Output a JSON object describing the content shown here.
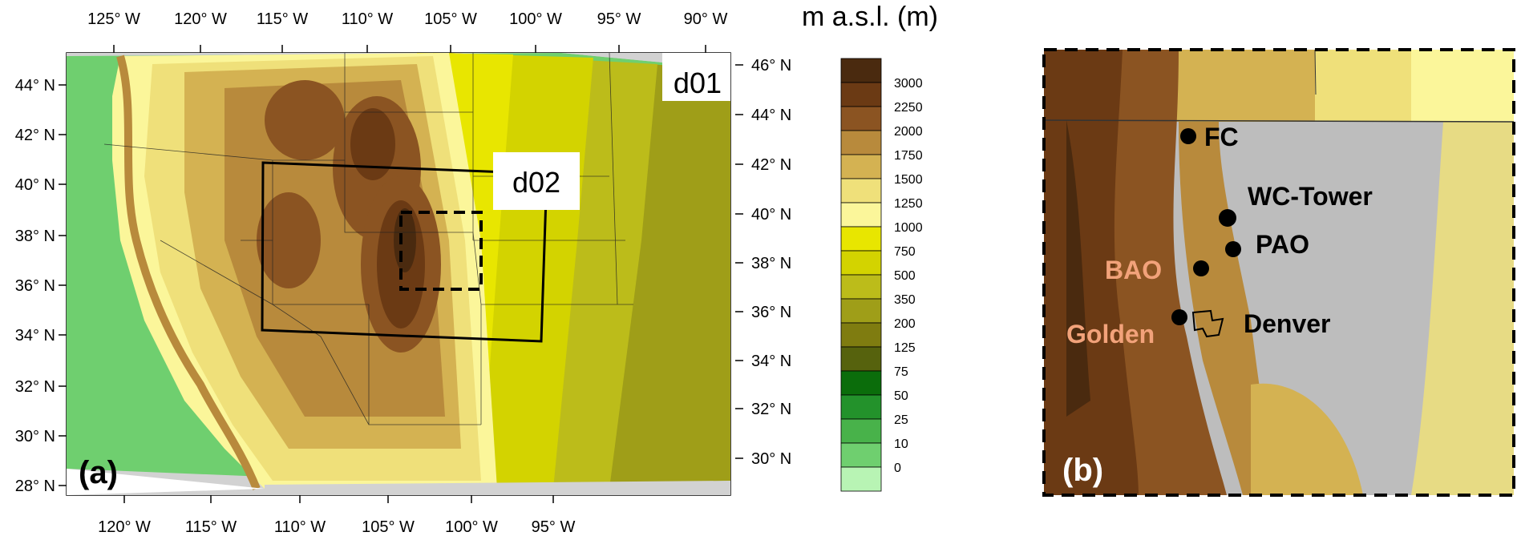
{
  "panel_a": {
    "label": "(a)",
    "bottom_lon_ticks": [
      "120° W",
      "115° W",
      "110° W",
      "105° W",
      "100° W",
      "95° W"
    ],
    "top_lon_ticks": [
      "125° W",
      "120° W",
      "115° W",
      "110° W",
      "105° W",
      "100° W",
      "95° W",
      "90° W"
    ],
    "left_lat_ticks": [
      "44° N",
      "42° N",
      "40° N",
      "38° N",
      "36° N",
      "34° N",
      "32° N",
      "30° N",
      "28° N"
    ],
    "right_lat_ticks": [
      "46° N",
      "44° N",
      "42° N",
      "40° N",
      "38° N",
      "36° N",
      "34° N",
      "32° N",
      "30° N"
    ],
    "domains": {
      "outer": "d01",
      "inner": "d02"
    }
  },
  "colorbar": {
    "title": "m a.s.l. (m)",
    "levels": [
      {
        "label": "3000",
        "color": "#4a2a0f"
      },
      {
        "label": "2250",
        "color": "#6b3a14"
      },
      {
        "label": "2000",
        "color": "#8b5422"
      },
      {
        "label": "1750",
        "color": "#b88a3c"
      },
      {
        "label": "1500",
        "color": "#d4b252"
      },
      {
        "label": "1250",
        "color": "#efe07a"
      },
      {
        "label": "1000",
        "color": "#fbf69a"
      },
      {
        "label": "750",
        "color": "#e8e600"
      },
      {
        "label": "500",
        "color": "#d3d300"
      },
      {
        "label": "350",
        "color": "#bcbc1a"
      },
      {
        "label": "200",
        "color": "#9f9e18"
      },
      {
        "label": "125",
        "color": "#7f7c10"
      },
      {
        "label": "75",
        "color": "#56620d"
      },
      {
        "label": "50",
        "color": "#0b6d0b"
      },
      {
        "label": "25",
        "color": "#23922b"
      },
      {
        "label": "10",
        "color": "#48b24a"
      },
      {
        "label": "0",
        "color": "#6fcf6f"
      },
      {
        "label": "",
        "color": "#b8f4b4"
      }
    ]
  },
  "panel_b": {
    "label": "(b)",
    "sites": [
      {
        "name": "FC",
        "color": "#000000"
      },
      {
        "name": "WC-Tower",
        "color": "#000000"
      },
      {
        "name": "PAO",
        "color": "#000000"
      },
      {
        "name": "BAO",
        "color": "#f2a27a"
      },
      {
        "name": "Golden",
        "color": "#f2a27a"
      },
      {
        "name": "Denver",
        "color": "#000000"
      }
    ]
  }
}
